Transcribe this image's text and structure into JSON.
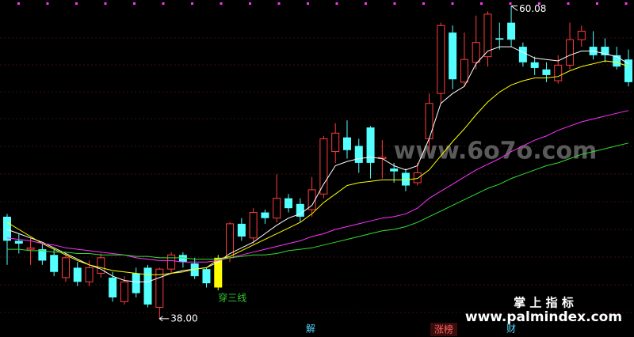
{
  "chart_data": {
    "type": "candlestick",
    "ylim": [
      37.6,
      60.5
    ],
    "up_color": "#ff3b3b",
    "down_color": "#54ffff",
    "open": [
      45.2,
      43.5,
      42.9,
      42.9,
      42.5,
      40.9,
      41.6,
      40.6,
      41.2,
      40.9,
      39.2,
      41.2,
      41.6,
      38.8,
      41.5,
      42.5,
      41.9,
      41.5,
      40.2,
      42.3,
      44.7,
      43.7,
      45.5,
      45.1,
      46.5,
      46.1,
      45.7,
      46.8,
      49.8,
      50.8,
      50.2,
      51.5,
      49.3,
      48.6,
      48.3,
      47.6,
      50.7,
      53.9,
      58.2,
      54.7,
      56.1,
      56.5,
      57.8,
      58.9,
      57.2,
      56.1,
      55.6,
      54.8,
      55.9,
      57.7,
      57.2,
      57.2,
      56.6,
      56.3
    ],
    "high": [
      45.4,
      44.0,
      43.7,
      43.3,
      42.9,
      42.6,
      42.0,
      42.1,
      42.6,
      41.3,
      41.0,
      41.6,
      41.8,
      41.6,
      42.7,
      42.7,
      42.3,
      41.6,
      42.5,
      44.8,
      45.1,
      45.8,
      45.7,
      48.2,
      46.8,
      46.5,
      48.0,
      50.9,
      51.8,
      52.0,
      50.7,
      51.6,
      50.6,
      49.0,
      48.6,
      49.0,
      53.9,
      58.9,
      58.7,
      58.2,
      59.4,
      59.7,
      58.9,
      60.08,
      57.5,
      56.5,
      56.1,
      56.6,
      58.9,
      58.7,
      58.3,
      57.8,
      57.2,
      57.0
    ],
    "low": [
      41.8,
      42.6,
      41.8,
      41.8,
      41.0,
      40.6,
      40.3,
      40.3,
      40.9,
      39.2,
      39.0,
      39.5,
      38.8,
      38.0,
      41.2,
      41.6,
      40.8,
      40.2,
      40.0,
      42.0,
      43.5,
      43.3,
      44.7,
      44.8,
      45.5,
      44.8,
      45.2,
      46.5,
      49.0,
      49.3,
      48.3,
      47.9,
      47.9,
      47.6,
      47.0,
      47.4,
      49.8,
      53.2,
      54.2,
      54.4,
      55.6,
      55.8,
      57.0,
      57.2,
      55.8,
      55.2,
      54.7,
      54.6,
      55.6,
      57.2,
      56.3,
      56.1,
      55.6,
      54.4
    ],
    "close": [
      43.5,
      43.3,
      43.0,
      42.1,
      41.3,
      42.3,
      40.6,
      41.6,
      42.3,
      39.5,
      40.6,
      39.8,
      39.0,
      41.5,
      42.5,
      42.0,
      41.0,
      40.5,
      42.3,
      44.7,
      43.8,
      45.5,
      45.1,
      46.5,
      45.8,
      45.2,
      47.1,
      50.7,
      51.1,
      49.9,
      49.0,
      49.0,
      49.4,
      48.4,
      47.4,
      48.3,
      53.2,
      58.7,
      54.9,
      56.3,
      57.5,
      59.5,
      57.7,
      57.7,
      56.1,
      55.7,
      55.2,
      55.9,
      57.7,
      58.3,
      56.6,
      56.6,
      55.8,
      54.7
    ],
    "lines": [
      {
        "color": "#ffffff",
        "values": [
          44.3,
          44.0,
          43.7,
          43.4,
          43.0,
          42.6,
          42.2,
          41.8,
          41.5,
          41.0,
          40.7,
          40.6,
          40.6,
          40.9,
          41.2,
          41.4,
          41.5,
          41.6,
          42.0,
          42.6,
          43.0,
          43.4,
          44.0,
          44.6,
          45.1,
          45.4,
          46.0,
          47.5,
          48.8,
          49.1,
          49.3,
          49.4,
          49.3,
          48.8,
          48.5,
          48.8,
          50.7,
          53.2,
          53.9,
          54.4,
          56.0,
          56.9,
          57.2,
          57.2,
          56.8,
          56.4,
          56.3,
          56.2,
          56.6,
          56.9,
          56.9,
          56.7,
          56.5,
          56.0
        ]
      },
      {
        "color": "#ffff00",
        "values": [
          44.8,
          44.3,
          43.8,
          43.3,
          42.9,
          42.5,
          42.1,
          41.8,
          41.6,
          41.4,
          41.3,
          41.2,
          41.1,
          41.1,
          41.2,
          41.3,
          41.5,
          41.6,
          42.2,
          42.4,
          42.8,
          43.2,
          43.6,
          44.0,
          44.4,
          44.8,
          45.4,
          46.2,
          46.8,
          47.4,
          47.6,
          47.7,
          47.8,
          47.8,
          47.8,
          47.9,
          48.5,
          49.5,
          50.5,
          51.4,
          52.4,
          53.3,
          54.0,
          54.5,
          54.8,
          55.0,
          55.0,
          55.1,
          55.5,
          55.8,
          56.0,
          56.2,
          56.1,
          55.8
        ]
      },
      {
        "color": "#ff33ff",
        "values": [
          43.7,
          43.6,
          43.5,
          43.3,
          43.2,
          43.0,
          42.9,
          42.8,
          42.7,
          42.6,
          42.5,
          42.3,
          42.2,
          42.1,
          42.1,
          42.0,
          42.0,
          42.0,
          42.1,
          42.3,
          42.5,
          42.7,
          42.9,
          43.1,
          43.3,
          43.5,
          43.8,
          44.0,
          44.3,
          44.5,
          44.7,
          44.9,
          45.1,
          45.2,
          45.4,
          45.8,
          46.5,
          47.0,
          47.5,
          48.0,
          48.5,
          48.9,
          49.3,
          49.8,
          50.2,
          50.6,
          50.9,
          51.3,
          51.6,
          51.9,
          52.1,
          52.3,
          52.5,
          52.7
        ]
      },
      {
        "color": "#33dd33",
        "values": [
          42.9,
          42.9,
          42.8,
          42.8,
          42.7,
          42.7,
          42.6,
          42.6,
          42.5,
          42.5,
          42.5,
          42.4,
          42.4,
          42.3,
          42.3,
          42.3,
          42.2,
          42.2,
          42.2,
          42.3,
          42.4,
          42.5,
          42.5,
          42.6,
          42.8,
          42.9,
          43.0,
          43.2,
          43.4,
          43.6,
          43.8,
          44.0,
          44.2,
          44.3,
          44.5,
          44.8,
          45.2,
          45.6,
          46.0,
          46.4,
          46.8,
          47.2,
          47.5,
          47.9,
          48.2,
          48.5,
          48.8,
          49.0,
          49.3,
          49.6,
          49.8,
          50.0,
          50.2,
          50.4
        ]
      }
    ],
    "price_labels": {
      "high": "60.08",
      "low": "38.00"
    },
    "signal": {
      "index": 18,
      "color": "#ffff00",
      "label": "穿三线",
      "label_color": "#33cc33"
    },
    "markers": [
      "解",
      "涨榜",
      "财"
    ],
    "watermark": "www.6o7o.com",
    "brand": "掌 上 指 标",
    "site": "www.palmindex.com"
  }
}
